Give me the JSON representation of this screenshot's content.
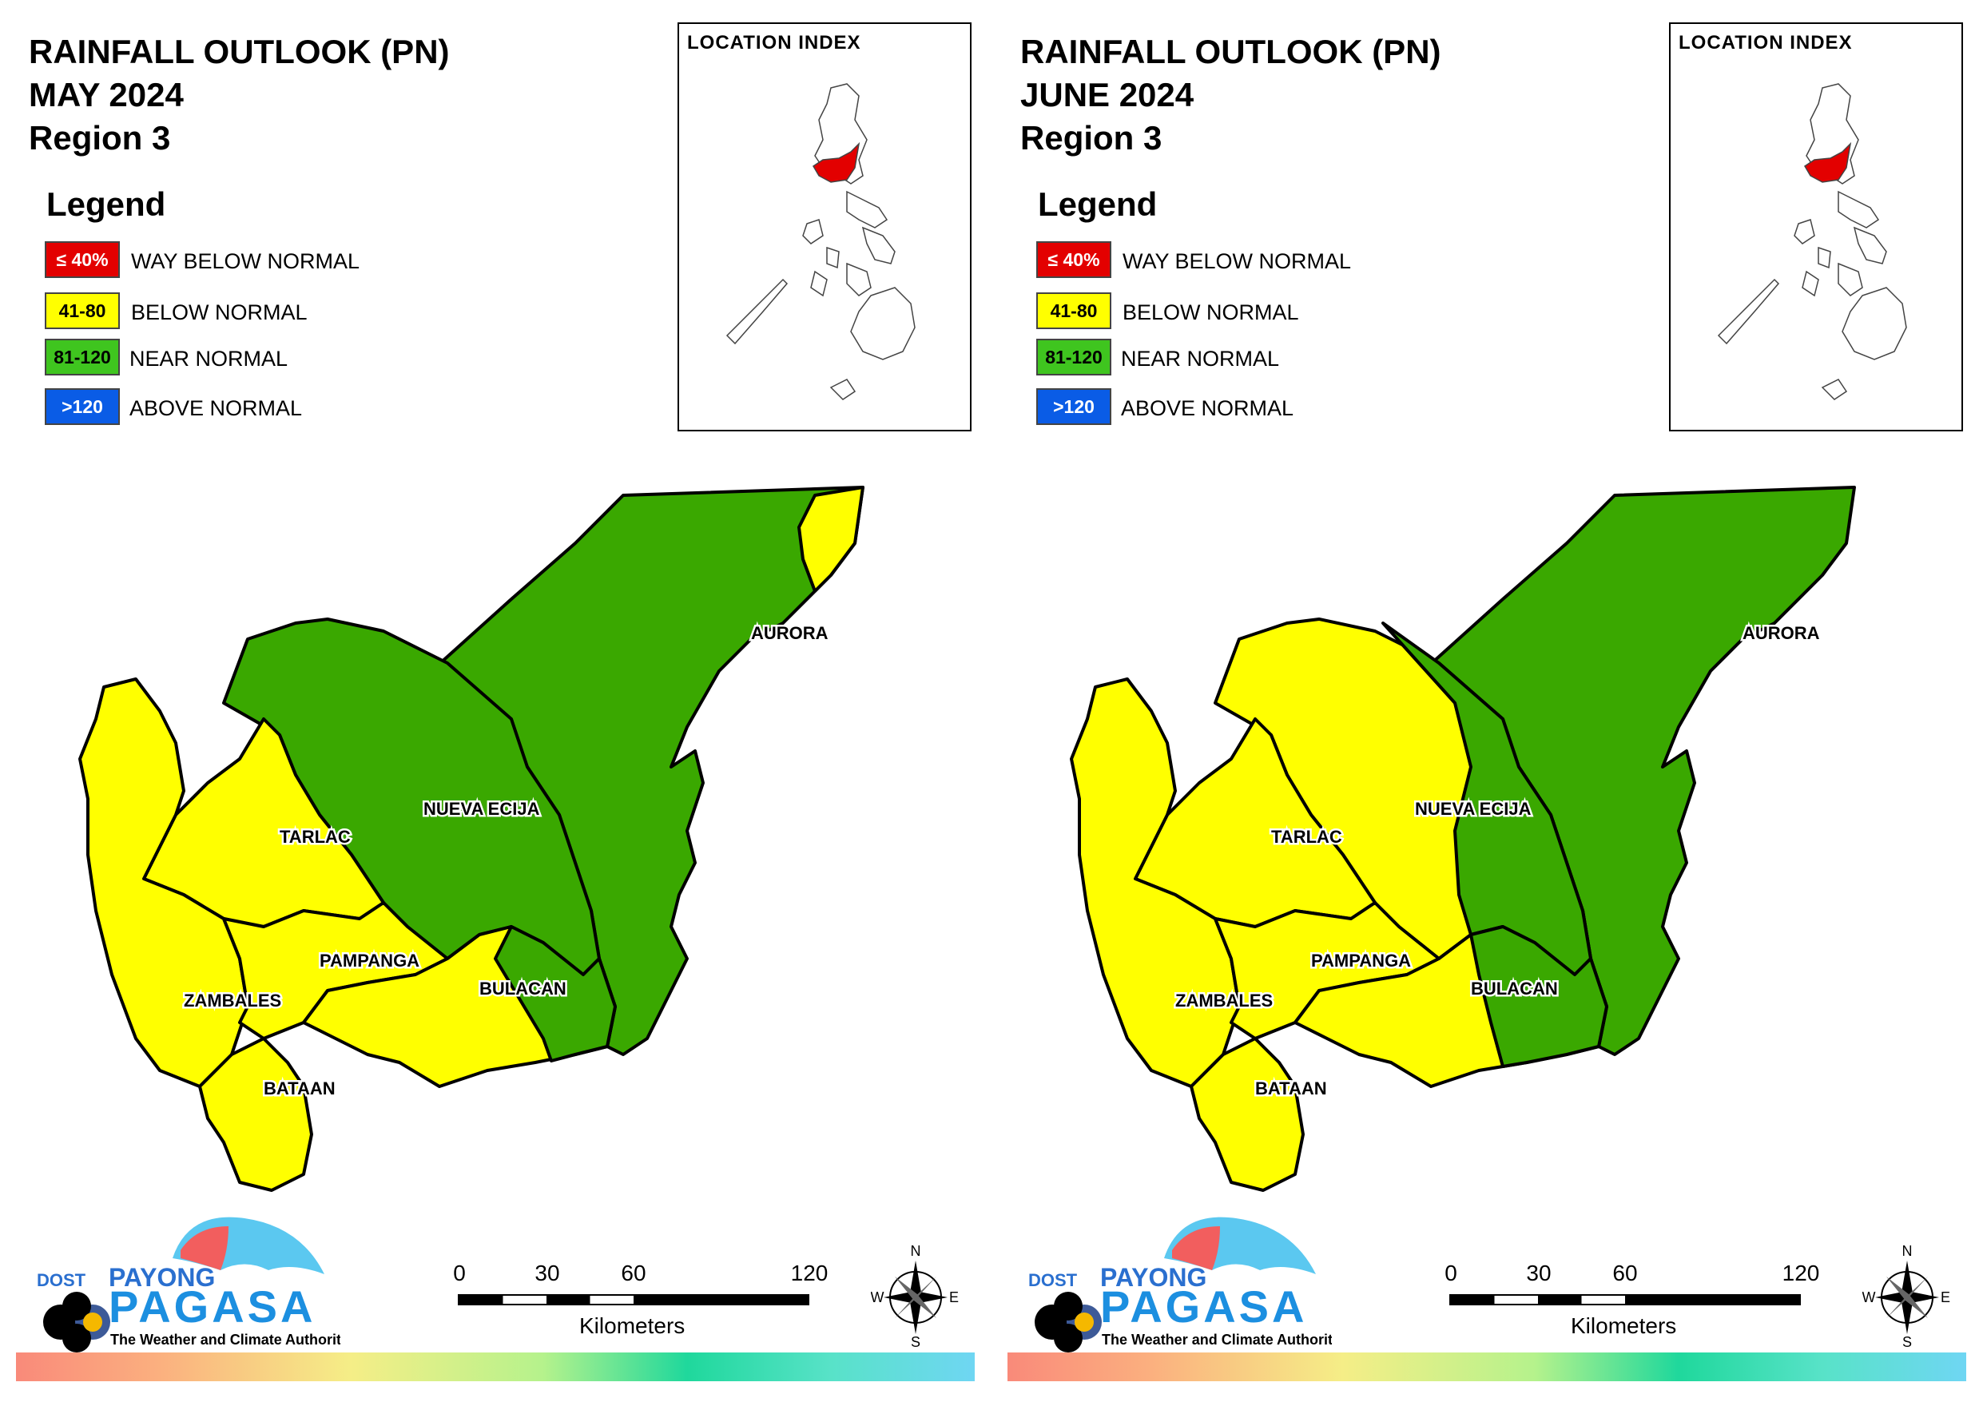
{
  "panels": [
    {
      "title_line1": "RAINFALL OUTLOOK (PN)",
      "title_line2": "MAY 2024",
      "title_line3": "Region 3",
      "provinces": {
        "aurora": "#3aa800",
        "nueva_ecija": "#3aa800",
        "bulacan": "#3aa800",
        "tarlac": "#ffff00",
        "pampanga": "#ffff00",
        "zambales": "#ffff00",
        "bataan": "#ffff00"
      }
    },
    {
      "title_line1": "RAINFALL OUTLOOK (PN)",
      "title_line2": "JUNE 2024",
      "title_line3": "Region 3",
      "provinces": {
        "aurora": "#3aa800",
        "nueva_ecija": "#ffff00",
        "bulacan": "#ffff00",
        "tarlac": "#ffff00",
        "pampanga": "#ffff00",
        "zambales": "#ffff00",
        "bataan": "#ffff00"
      }
    }
  ],
  "legend": {
    "title": "Legend",
    "items": [
      {
        "range": "≤ 40%",
        "label": "WAY BELOW NORMAL",
        "color": "#e30000",
        "text_color": "#ffffff"
      },
      {
        "range": "41-80",
        "label": "BELOW NORMAL",
        "color": "#ffff00",
        "text_color": "#000000"
      },
      {
        "range": "81-120",
        "label": "NEAR NORMAL",
        "color": "#3fc51f",
        "text_color": "#000000"
      },
      {
        "range": ">120",
        "label": "ABOVE NORMAL",
        "color": "#0a5ce6",
        "text_color": "#ffffff"
      }
    ]
  },
  "inset": {
    "title": "LOCATION INDEX",
    "highlight_color": "#e30000"
  },
  "labels": {
    "aurora": "AURORA",
    "nueva_ecija": "NUEVA ECIJA",
    "tarlac": "TARLAC",
    "pampanga": "PAMPANGA",
    "zambales": "ZAMBALES",
    "bulacan": "BULACAN",
    "bataan": "BATAAN"
  },
  "logo": {
    "dost": "DOST",
    "payong": "PAYONG",
    "pagasa": "PAGASA",
    "tagline": "The Weather and Climate Authority"
  },
  "scale": {
    "ticks": [
      "0",
      "30",
      "60",
      "120"
    ],
    "unit": "Kilometers"
  },
  "compass": {
    "n": "N",
    "s": "S",
    "e": "E",
    "w": "W"
  },
  "colors": {
    "near_normal_fill": "#3aa800",
    "below_normal_fill": "#ffff00"
  }
}
